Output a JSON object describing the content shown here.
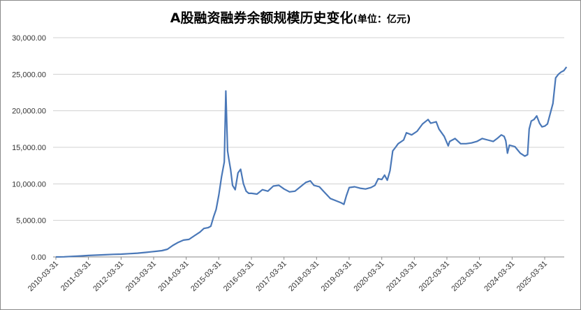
{
  "chart_data": {
    "type": "line",
    "title": "A股融资融券余额规模历史变化",
    "subtitle": "(单位：亿元)",
    "xlabel": "",
    "ylabel": "",
    "ylim": [
      0,
      30000
    ],
    "yticks": [
      "0.00",
      "5,000.00",
      "10,000.00",
      "15,000.00",
      "20,000.00",
      "25,000.00",
      "30,000.00"
    ],
    "xticks": [
      "2010-03-31",
      "2011-03-31",
      "2012-03-31",
      "2013-03-31",
      "2014-03-31",
      "2015-03-31",
      "2016-03-31",
      "2017-03-31",
      "2018-03-31",
      "2019-03-31",
      "2020-03-31",
      "2021-03-31",
      "2022-03-31",
      "2023-03-31",
      "2024-03-31",
      "2025-03-31"
    ],
    "grid": true,
    "series": [
      {
        "name": "",
        "color": "#4a78b8",
        "x": [
          "2010-03-31",
          "2010-07-01",
          "2010-10-01",
          "2011-01-01",
          "2011-04-01",
          "2011-07-01",
          "2011-10-01",
          "2012-01-01",
          "2012-04-01",
          "2012-07-01",
          "2012-10-01",
          "2013-01-01",
          "2013-03-01",
          "2013-05-01",
          "2013-07-01",
          "2013-09-01",
          "2013-11-01",
          "2014-01-01",
          "2014-03-01",
          "2014-05-01",
          "2014-07-01",
          "2014-09-01",
          "2014-10-15",
          "2014-12-01",
          "2015-01-01",
          "2015-02-01",
          "2015-03-01",
          "2015-04-01",
          "2015-05-01",
          "2015-06-01",
          "2015-06-18",
          "2015-07-08",
          "2015-07-20",
          "2015-08-10",
          "2015-09-01",
          "2015-10-01",
          "2015-11-01",
          "2015-12-01",
          "2016-01-01",
          "2016-02-01",
          "2016-03-01",
          "2016-04-01",
          "2016-06-01",
          "2016-08-01",
          "2016-10-01",
          "2016-12-01",
          "2017-02-01",
          "2017-04-01",
          "2017-06-01",
          "2017-08-01",
          "2017-10-01",
          "2017-12-01",
          "2018-01-20",
          "2018-03-01",
          "2018-05-01",
          "2018-07-01",
          "2018-09-01",
          "2018-11-01",
          "2019-01-01",
          "2019-02-01",
          "2019-03-01",
          "2019-04-01",
          "2019-06-01",
          "2019-08-01",
          "2019-10-01",
          "2019-12-01",
          "2020-01-15",
          "2020-02-20",
          "2020-03-31",
          "2020-05-01",
          "2020-06-01",
          "2020-07-01",
          "2020-08-01",
          "2020-09-01",
          "2020-10-01",
          "2020-12-01",
          "2021-01-01",
          "2021-03-01",
          "2021-05-01",
          "2021-07-01",
          "2021-09-01",
          "2021-10-01",
          "2021-12-01",
          "2022-01-01",
          "2022-03-01",
          "2022-04-15",
          "2022-05-01",
          "2022-07-01",
          "2022-09-01",
          "2022-11-01",
          "2023-01-01",
          "2023-03-01",
          "2023-05-01",
          "2023-07-01",
          "2023-09-01",
          "2023-10-15",
          "2023-12-01",
          "2024-01-01",
          "2024-01-20",
          "2024-02-08",
          "2024-03-01",
          "2024-05-01",
          "2024-07-01",
          "2024-08-20",
          "2024-09-20",
          "2024-10-08",
          "2024-11-01",
          "2024-12-01",
          "2025-01-01",
          "2025-02-01",
          "2025-03-01",
          "2025-04-01",
          "2025-05-01",
          "2025-07-01",
          "2025-08-01",
          "2025-09-01",
          "2025-10-01",
          "2025-11-01",
          "2025-12-01"
        ],
        "values": [
          0,
          20,
          80,
          130,
          200,
          250,
          300,
          350,
          380,
          450,
          520,
          620,
          700,
          770,
          860,
          1050,
          1580,
          2000,
          2300,
          2400,
          2900,
          3400,
          3900,
          4000,
          4200,
          5500,
          6500,
          8500,
          11000,
          13000,
          22700,
          14500,
          13500,
          12000,
          9800,
          9200,
          11500,
          12000,
          10000,
          9000,
          8700,
          8700,
          8600,
          9200,
          9000,
          9700,
          9800,
          9300,
          8900,
          9000,
          9600,
          10200,
          10400,
          9800,
          9600,
          8800,
          8000,
          7700,
          7400,
          7200,
          8400,
          9500,
          9600,
          9400,
          9300,
          9500,
          9800,
          10700,
          10600,
          11200,
          10500,
          11800,
          14500,
          15000,
          15500,
          16000,
          17000,
          16700,
          17200,
          18200,
          18800,
          18300,
          18500,
          17500,
          16500,
          15200,
          15800,
          16200,
          15500,
          15500,
          15600,
          15800,
          16200,
          16000,
          15800,
          16200,
          16700,
          16500,
          15900,
          14200,
          15300,
          15100,
          14200,
          13800,
          14000,
          17500,
          18600,
          18800,
          19300,
          18300,
          17800,
          17900,
          18200,
          21000,
          24500,
          25000,
          25300,
          25500,
          26000
        ]
      }
    ]
  }
}
